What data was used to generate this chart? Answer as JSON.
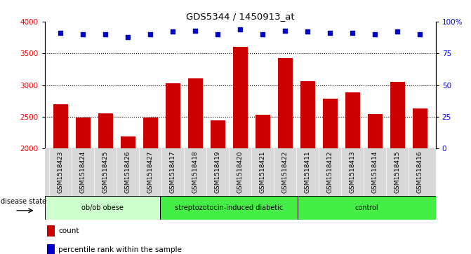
{
  "title": "GDS5344 / 1450913_at",
  "samples": [
    "GSM1518423",
    "GSM1518424",
    "GSM1518425",
    "GSM1518426",
    "GSM1518427",
    "GSM1518417",
    "GSM1518418",
    "GSM1518419",
    "GSM1518420",
    "GSM1518421",
    "GSM1518422",
    "GSM1518411",
    "GSM1518412",
    "GSM1518413",
    "GSM1518414",
    "GSM1518415",
    "GSM1518416"
  ],
  "counts": [
    2700,
    2490,
    2560,
    2190,
    2490,
    3030,
    3110,
    2440,
    3600,
    2530,
    3420,
    3060,
    2790,
    2880,
    2540,
    3050,
    2630
  ],
  "percentiles": [
    91,
    90,
    90,
    88,
    90,
    92,
    93,
    90,
    94,
    90,
    93,
    92,
    91,
    91,
    90,
    92,
    90
  ],
  "bar_color": "#cc0000",
  "dot_color": "#0000cc",
  "ylim_left": [
    2000,
    4000
  ],
  "ylim_right": [
    0,
    100
  ],
  "yticks_left": [
    2000,
    2500,
    3000,
    3500,
    4000
  ],
  "yticks_right": [
    0,
    25,
    50,
    75,
    100
  ],
  "ytick_labels_right": [
    "0",
    "25",
    "50",
    "75",
    "100%"
  ],
  "grid_values": [
    2500,
    3000,
    3500
  ],
  "plot_bg": "#ffffff",
  "tick_area_bg": "#d8d8d8",
  "group_labels": [
    "ob/ob obese",
    "streptozotocin-induced diabetic",
    "control"
  ],
  "group_ranges": [
    [
      0,
      5
    ],
    [
      5,
      11
    ],
    [
      11,
      17
    ]
  ],
  "group_colors": [
    "#ccffcc",
    "#44ee44",
    "#44ee44"
  ],
  "disease_state_label": "disease state"
}
